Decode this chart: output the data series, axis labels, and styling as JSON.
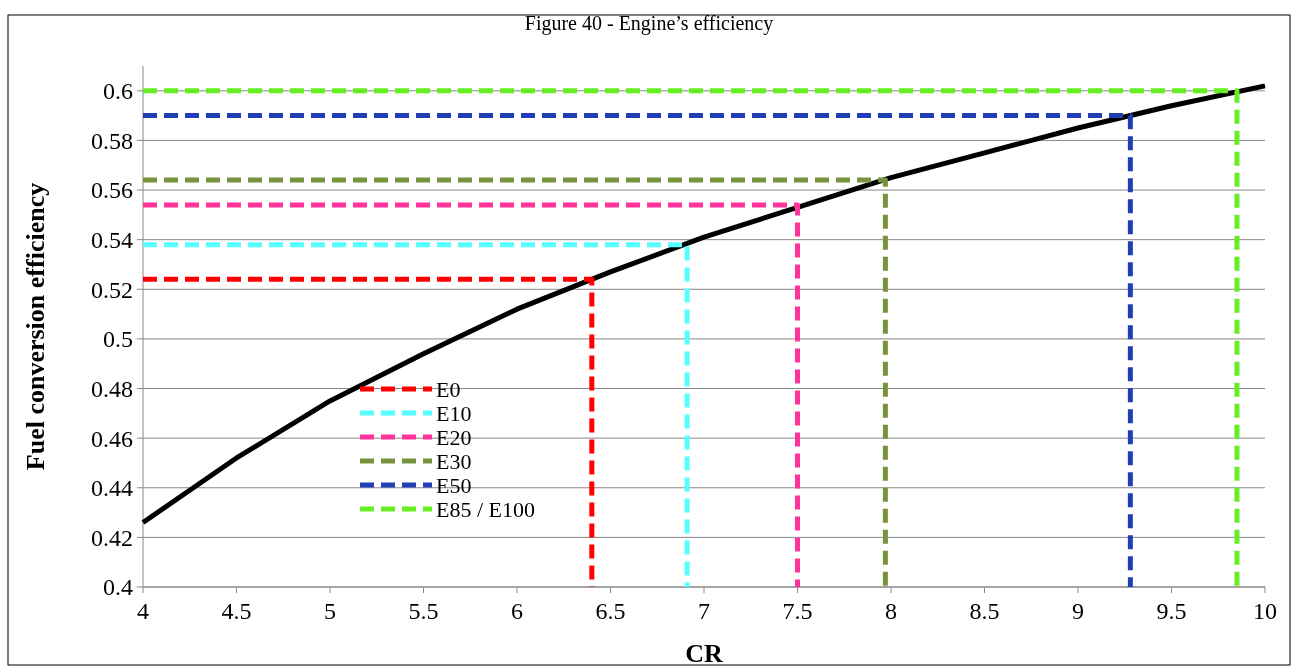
{
  "chart_data": {
    "type": "line",
    "title": "Figure 40 - Engine’s efficiency",
    "xlabel": "CR",
    "ylabel": "Fuel conversion efficiency",
    "xlim": [
      4,
      10
    ],
    "xticks": [
      4,
      4.5,
      5,
      5.5,
      6,
      6.5,
      7,
      7.5,
      8,
      8.5,
      9,
      9.5,
      10
    ],
    "ylim": [
      0.4,
      0.61
    ],
    "yticks": [
      0.4,
      0.42,
      0.44,
      0.46,
      0.48,
      0.5,
      0.52,
      0.54,
      0.56,
      0.58,
      0.6
    ],
    "grid": "y",
    "legend": "bottom left",
    "series": [
      {
        "color": "#000000",
        "line_style": "solid",
        "x": [
          4,
          4.5,
          5,
          5.5,
          6,
          6.5,
          7,
          7.5,
          8,
          8.5,
          9,
          9.5,
          10
        ],
        "values": [
          0.426,
          0.452,
          0.475,
          0.494,
          0.512,
          0.527,
          0.541,
          0.553,
          0.565,
          0.575,
          0.585,
          0.594,
          0.602
        ]
      },
      {
        "name": "E0",
        "color": "#ff0000",
        "line_style": "dashed",
        "x": [
          4,
          6.4,
          6.4
        ],
        "values": [
          0.524,
          0.524,
          0.4
        ]
      },
      {
        "name": "E10",
        "color": "#55ffff",
        "line_style": "dashed",
        "x": [
          4,
          6.91,
          6.91
        ],
        "values": [
          0.538,
          0.538,
          0.4
        ]
      },
      {
        "name": "E20",
        "color": "#ff3399",
        "line_style": "dashed",
        "x": [
          4,
          7.5,
          7.5
        ],
        "values": [
          0.554,
          0.554,
          0.4
        ]
      },
      {
        "name": "E30",
        "color": "#77933c",
        "line_style": "dashed",
        "x": [
          4,
          7.97,
          7.97
        ],
        "values": [
          0.564,
          0.564,
          0.4
        ]
      },
      {
        "name": "E50",
        "color": "#1f3fb4",
        "line_style": "dashed",
        "x": [
          4,
          9.28,
          9.28
        ],
        "values": [
          0.59,
          0.59,
          0.4
        ]
      },
      {
        "name": "E85 / E100",
        "color": "#66ee22",
        "line_style": "dashed",
        "x": [
          4,
          9.85,
          9.85
        ],
        "values": [
          0.6,
          0.6,
          0.4
        ]
      }
    ]
  }
}
